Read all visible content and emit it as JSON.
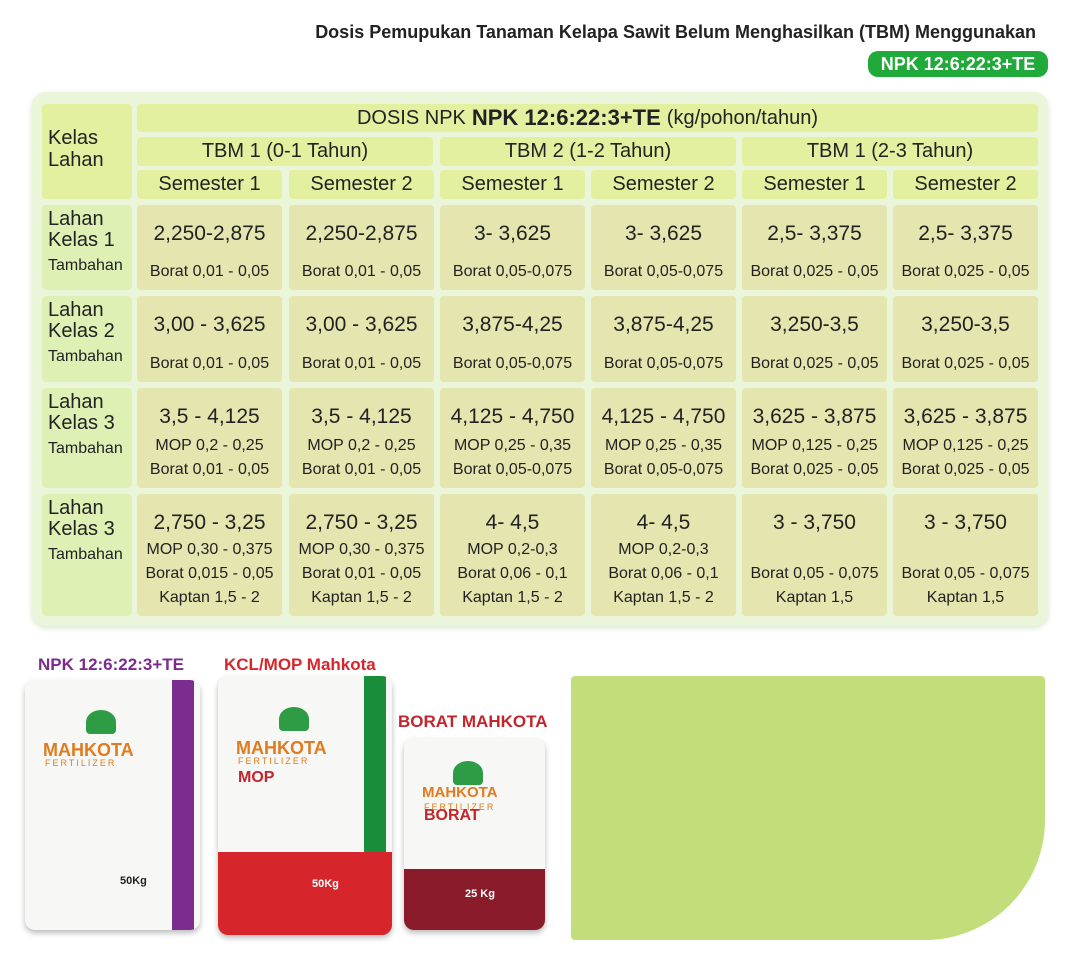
{
  "header": {
    "title": "Dosis Pemupukan Tanaman Kelapa Sawit Belum Menghasilkan (TBM)  Menggunakan",
    "badge": "NPK 12:6:22:3+TE"
  },
  "table": {
    "corner": [
      "Kelas",
      "Lahan"
    ],
    "dose_prefix": "DOSIS NPK",
    "dose_product": "NPK 12:6:22:3+TE",
    "dose_unit": "(kg/pohon/tahun)",
    "groups": [
      "TBM 1 (0-1 Tahun)",
      "TBM 2 (1-2 Tahun)",
      "TBM 1 (2-3 Tahun)"
    ],
    "semesters": [
      "Semester 1",
      "Semester 2",
      "Semester 1",
      "Semester 2",
      "Semester 1",
      "Semester 2"
    ],
    "rows": [
      {
        "label": [
          "Lahan",
          "Kelas 1"
        ],
        "extra": "Tambahan",
        "cells": [
          {
            "main": "2,250-2,875",
            "lines": [
              "Borat 0,01 - 0,05"
            ]
          },
          {
            "main": "2,250-2,875",
            "lines": [
              "Borat 0,01 - 0,05"
            ]
          },
          {
            "main": "3- 3,625",
            "lines": [
              "Borat 0,05-0,075"
            ]
          },
          {
            "main": "3- 3,625",
            "lines": [
              "Borat 0,05-0,075"
            ]
          },
          {
            "main": "2,5- 3,375",
            "lines": [
              "Borat 0,025 - 0,05"
            ]
          },
          {
            "main": "2,5- 3,375",
            "lines": [
              "Borat 0,025 - 0,05"
            ]
          }
        ]
      },
      {
        "label": [
          "Lahan",
          "Kelas 2"
        ],
        "extra": "Tambahan",
        "cells": [
          {
            "main": "3,00 - 3,625",
            "lines": [
              "Borat 0,01 - 0,05"
            ]
          },
          {
            "main": "3,00 - 3,625",
            "lines": [
              "Borat 0,01 - 0,05"
            ]
          },
          {
            "main": "3,875-4,25",
            "lines": [
              "Borat 0,05-0,075"
            ]
          },
          {
            "main": "3,875-4,25",
            "lines": [
              "Borat 0,05-0,075"
            ]
          },
          {
            "main": "3,250-3,5",
            "lines": [
              "Borat 0,025 - 0,05"
            ]
          },
          {
            "main": "3,250-3,5",
            "lines": [
              "Borat 0,025 - 0,05"
            ]
          }
        ]
      },
      {
        "label": [
          "Lahan",
          "Kelas 3"
        ],
        "extra": "Tambahan",
        "cells": [
          {
            "main": "3,5 - 4,125",
            "lines": [
              "MOP 0,2 - 0,25",
              "Borat 0,01 - 0,05"
            ]
          },
          {
            "main": "3,5 - 4,125",
            "lines": [
              "MOP 0,2 - 0,25",
              "Borat 0,01 - 0,05"
            ]
          },
          {
            "main": "4,125 - 4,750",
            "lines": [
              "MOP 0,25 - 0,35",
              "Borat 0,05-0,075"
            ]
          },
          {
            "main": "4,125 - 4,750",
            "lines": [
              "MOP 0,25 - 0,35",
              "Borat 0,05-0,075"
            ]
          },
          {
            "main": "3,625 - 3,875",
            "lines": [
              "MOP 0,125 - 0,25",
              "Borat 0,025 - 0,05"
            ]
          },
          {
            "main": "3,625 - 3,875",
            "lines": [
              "MOP 0,125 - 0,25",
              "Borat 0,025 - 0,05"
            ]
          }
        ]
      },
      {
        "label": [
          "Lahan",
          "Kelas 3"
        ],
        "extra": "Tambahan",
        "cells": [
          {
            "main": "2,750 - 3,25",
            "lines": [
              "MOP 0,30 - 0,375",
              "Borat 0,015 - 0,05",
              "Kaptan 1,5 - 2"
            ]
          },
          {
            "main": "2,750 - 3,25",
            "lines": [
              "MOP 0,30 - 0,375",
              "Borat 0,01 - 0,05",
              "Kaptan 1,5 - 2"
            ]
          },
          {
            "main": "4- 4,5",
            "lines": [
              "MOP 0,2-0,3",
              "Borat 0,06 - 0,1",
              "Kaptan 1,5 - 2"
            ]
          },
          {
            "main": "4- 4,5",
            "lines": [
              "MOP 0,2-0,3",
              "Borat 0,06 - 0,1",
              "Kaptan 1,5 - 2"
            ]
          },
          {
            "main": "3 - 3,750",
            "lines": [
              "Borat 0,05 - 0,075",
              "Kaptan 1,5"
            ]
          },
          {
            "main": "3 - 3,750",
            "lines": [
              "Borat 0,05 - 0,075",
              "Kaptan 1,5"
            ]
          }
        ]
      }
    ]
  },
  "products": [
    {
      "caption": "NPK 12:6:22:3+TE",
      "brand": "MAHKOTA",
      "sub": "FERTILIZER",
      "name": "",
      "weight": "50Kg"
    },
    {
      "caption": "KCL/MOP Mahkota",
      "brand": "MAHKOTA",
      "sub": "FERTILIZER",
      "name": "MOP",
      "weight": "50Kg"
    },
    {
      "caption": "BORAT MAHKOTA",
      "brand": "MAHKOTA",
      "sub": "FERTILIZER",
      "name": "BORAT",
      "weight": "25 Kg"
    }
  ]
}
